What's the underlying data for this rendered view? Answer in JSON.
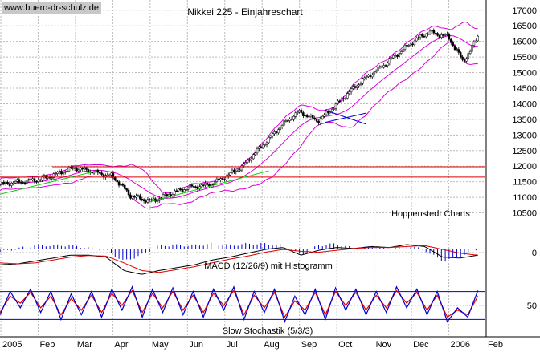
{
  "watermark": "www.buero-dr-schulz.de",
  "chart_data": {
    "type": "line",
    "title": "Nikkei 225 - Einjahreschart",
    "source_note": "Hoppenstedt Charts",
    "months": [
      "2005",
      "Feb",
      "Mar",
      "Apr",
      "May",
      "Jun",
      "Jul",
      "Aug",
      "Sep",
      "Oct",
      "Nov",
      "Dec",
      "2006",
      "Feb"
    ],
    "price": {
      "y_ticks": [
        10500,
        11000,
        11500,
        12000,
        12500,
        13000,
        13500,
        14000,
        14500,
        15000,
        15500,
        16000,
        16500,
        17000
      ],
      "ylim": [
        10000,
        17200
      ],
      "x": [
        0,
        0.5,
        1,
        1.5,
        2,
        2.5,
        3,
        3.5,
        4,
        4.5,
        5,
        5.5,
        6,
        6.5,
        7,
        7.5,
        8,
        8.5,
        9,
        9.5,
        10,
        10.5,
        11,
        11.5,
        12,
        12.4,
        12.6,
        12.8
      ],
      "close": [
        11400,
        11450,
        11600,
        11750,
        11900,
        11850,
        11700,
        11000,
        10900,
        11100,
        11250,
        11400,
        11650,
        11950,
        12650,
        13300,
        13700,
        13450,
        14000,
        14500,
        15000,
        15500,
        15900,
        16300,
        16200,
        15350,
        15650,
        16150
      ],
      "horizontal_lines": [
        {
          "value": 11980,
          "from": 1.4
        },
        {
          "value": 11650,
          "from": 0
        },
        {
          "value": 11300,
          "from": 0
        }
      ],
      "trend_lines": [
        {
          "x1": 0,
          "y1": 11100,
          "x2": 2.6,
          "y2": 11850,
          "color": "#00cc00"
        },
        {
          "x1": 4.0,
          "y1": 10850,
          "x2": 7.2,
          "y2": 11850,
          "color": "#00cc00"
        },
        {
          "x1": 8.7,
          "y1": 13800,
          "x2": 9.8,
          "y2": 13350,
          "color": "#0000cc"
        },
        {
          "x1": 8.7,
          "y1": 13400,
          "x2": 9.8,
          "y2": 13700,
          "color": "#0000cc"
        }
      ]
    },
    "macd": {
      "label": "MACD (12/26/9) mit Histogramm",
      "y_ticks": [
        0
      ],
      "ylim": [
        -1,
        1
      ],
      "macd": [
        -0.3,
        -0.25,
        -0.1,
        0.05,
        0.2,
        0.2,
        0.1,
        -0.6,
        -0.8,
        -0.6,
        -0.45,
        -0.3,
        -0.05,
        0.1,
        0.3,
        0.5,
        0.6,
        0.2,
        0.45,
        0.6,
        0.55,
        0.65,
        0.6,
        0.75,
        0.65,
        0.1,
        0.05,
        0.2
      ],
      "signal": [
        -0.2,
        -0.25,
        -0.2,
        -0.05,
        0.1,
        0.18,
        0.15,
        -0.2,
        -0.6,
        -0.7,
        -0.55,
        -0.4,
        -0.2,
        0.0,
        0.15,
        0.35,
        0.5,
        0.4,
        0.35,
        0.45,
        0.55,
        0.6,
        0.6,
        0.65,
        0.7,
        0.5,
        0.3,
        0.2
      ]
    },
    "stochastic": {
      "label": "Slow Stochastik (5/3/3)",
      "y_ticks": [
        50
      ],
      "ylim": [
        0,
        100
      ],
      "upper_line": 80,
      "lower_line": 20,
      "k": [
        30,
        80,
        45,
        85,
        35,
        80,
        20,
        75,
        30,
        80,
        25,
        85,
        40,
        90,
        25,
        85,
        35,
        88,
        30,
        80,
        25,
        85,
        40,
        90,
        20,
        80,
        35,
        85,
        15,
        70,
        30,
        85,
        20,
        88,
        40,
        85,
        30,
        80,
        35,
        90,
        45,
        85,
        30,
        80,
        15,
        45,
        25,
        82
      ],
      "d": [
        35,
        70,
        55,
        78,
        45,
        70,
        30,
        65,
        40,
        72,
        35,
        76,
        50,
        82,
        35,
        76,
        45,
        80,
        40,
        72,
        35,
        76,
        50,
        82,
        30,
        72,
        45,
        78,
        25,
        60,
        40,
        78,
        30,
        80,
        50,
        78,
        40,
        72,
        45,
        82,
        55,
        78,
        40,
        72,
        25,
        40,
        30,
        70
      ]
    },
    "grid": true
  }
}
